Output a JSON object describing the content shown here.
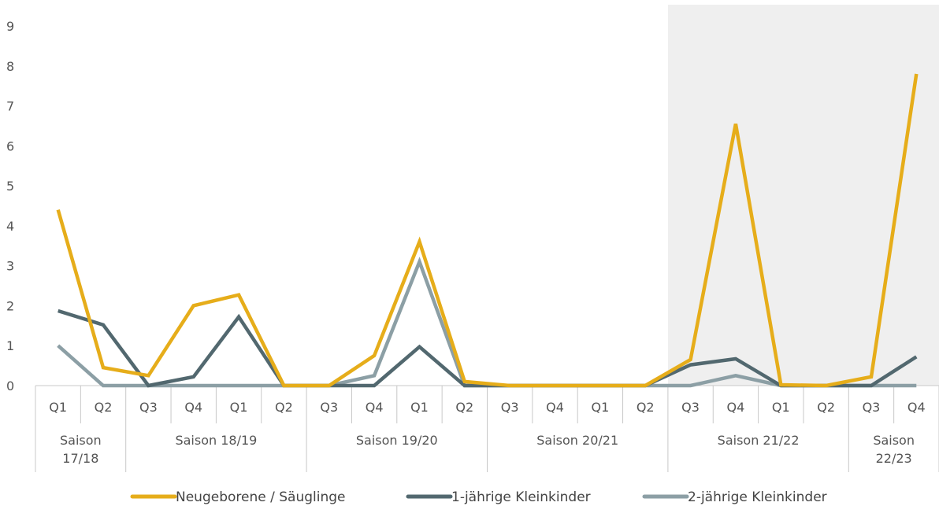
{
  "chart_data": {
    "type": "line",
    "title": "",
    "xlabel": "",
    "ylabel": "",
    "ylim": [
      0,
      9
    ],
    "yticks": [
      0,
      1,
      2,
      3,
      4,
      5,
      6,
      7,
      8,
      9
    ],
    "grid": false,
    "legend_position": "bottom",
    "categories": [
      "Q1",
      "Q2",
      "Q3",
      "Q4",
      "Q1",
      "Q2",
      "Q3",
      "Q4",
      "Q1",
      "Q2",
      "Q3",
      "Q4",
      "Q1",
      "Q2",
      "Q3",
      "Q4",
      "Q1",
      "Q2",
      "Q3",
      "Q4"
    ],
    "groups": [
      {
        "label": "Saison 17/18",
        "lines": [
          "Saison",
          "17/18"
        ],
        "count": 2
      },
      {
        "label": "Saison 18/19",
        "lines": [
          "Saison 18/19"
        ],
        "count": 4
      },
      {
        "label": "Saison 19/20",
        "lines": [
          "Saison 19/20"
        ],
        "count": 4
      },
      {
        "label": "Saison 20/21",
        "lines": [
          "Saison 20/21"
        ],
        "count": 4
      },
      {
        "label": "Saison 21/22",
        "lines": [
          "Saison 21/22"
        ],
        "count": 4
      },
      {
        "label": "Saison 22/23",
        "lines": [
          "Saison",
          "22/23"
        ],
        "count": 2
      }
    ],
    "highlight": {
      "from_index": 14,
      "to_index": 19,
      "color": "#efefef"
    },
    "series": [
      {
        "name": "Neugeborene / Säuglinge",
        "color": "#e6ad1a",
        "values": [
          4.4,
          0.45,
          0.25,
          2.0,
          2.27,
          0.0,
          0.0,
          0.75,
          3.6,
          0.1,
          0.0,
          0.0,
          0.0,
          0.0,
          0.65,
          6.55,
          0.02,
          0.0,
          0.22,
          7.8
        ]
      },
      {
        "name": "1-jährige Kleinkinder",
        "color": "#52686f",
        "values": [
          1.87,
          1.52,
          0.0,
          0.22,
          1.72,
          0.0,
          0.0,
          0.0,
          0.97,
          0.0,
          0.0,
          0.0,
          0.0,
          0.0,
          0.52,
          0.67,
          0.0,
          0.0,
          0.0,
          0.72
        ]
      },
      {
        "name": "2-jährige Kleinkinder",
        "color": "#8c9fa5",
        "values": [
          1.0,
          0.0,
          0.0,
          0.0,
          0.0,
          0.0,
          0.0,
          0.25,
          3.1,
          0.0,
          0.0,
          0.0,
          0.0,
          0.0,
          0.0,
          0.25,
          0.0,
          0.0,
          0.0,
          0.0
        ]
      }
    ]
  }
}
